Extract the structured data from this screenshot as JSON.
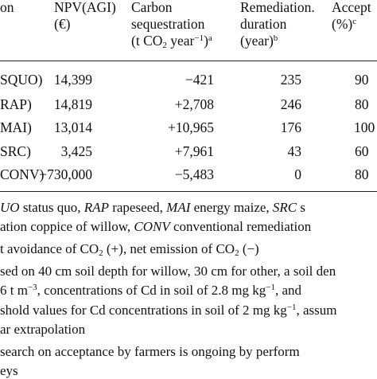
{
  "table": {
    "headers": {
      "scenario": "on",
      "npv_l1": "NPV(AGI)",
      "npv_l2": "(€)",
      "carbon_l1": "Carbon",
      "carbon_l2": "sequestration",
      "carbon_l3_a": "(t CO",
      "carbon_l3_sub": "2",
      "carbon_l3_b": " year",
      "carbon_l3_sup1": "−1",
      "carbon_l3_c": ")",
      "carbon_l3_sup2": "a",
      "remed_l1": "Remediation.",
      "remed_l2": "duration",
      "remed_l3": "(year)",
      "remed_l3_sup": "b",
      "accept_l1": "Accept",
      "accept_l2": "(%)",
      "accept_l2_sup": "c"
    },
    "rows": [
      {
        "scenario": "SQUO)",
        "npv": "14,399",
        "carbon": "−421",
        "duration": "235",
        "acceptance": "90"
      },
      {
        "scenario": "RAP)",
        "npv": "14,819",
        "carbon": "+2,708",
        "duration": "246",
        "acceptance": "80"
      },
      {
        "scenario": "MAI)",
        "npv": "13,014",
        "carbon": "+10,965",
        "duration": "176",
        "acceptance": "100"
      },
      {
        "scenario": "SRC)",
        "npv": "3,425",
        "carbon": "+7,961",
        "duration": "43",
        "acceptance": "60"
      },
      {
        "scenario": "CONV)",
        "npv": "−730,000",
        "carbon": "−5,483",
        "duration": "0",
        "acceptance": "80"
      }
    ]
  },
  "footnotes": {
    "abbrev": {
      "t1": "UO",
      "t2": " status quo, ",
      "t3": "RAP",
      "t4": " rapeseed, ",
      "t5": "MAI",
      "t6": " energy maize, ",
      "t7": "SRC",
      "t8": " s",
      "line2_a": "ation coppice of willow, ",
      "line2_b": "CONV",
      "line2_c": " conventional remediation"
    },
    "note_a": {
      "a": "t avoidance of CO",
      "sub1": "2",
      "b": " (+), net emission of CO",
      "sub2": "2",
      "c": " (−)"
    },
    "note_b": {
      "l1": "sed on 40 cm soil depth for willow, 30 cm for other, a soil den",
      "l2_a": "6 t m",
      "l2_sup1": "−3",
      "l2_b": ", concentrations of Cd in soil of 2.8 mg kg",
      "l2_sup2": "−1",
      "l2_c": ", and",
      "l3_a": "shold values for Cd concentrations in soil of 2 mg kg",
      "l3_sup": "−1",
      "l3_b": ", assum",
      "l4": "ar extrapolation"
    },
    "note_c": {
      "l1": "search on acceptance by farmers is ongoing by perform",
      "l2": "eys"
    }
  }
}
